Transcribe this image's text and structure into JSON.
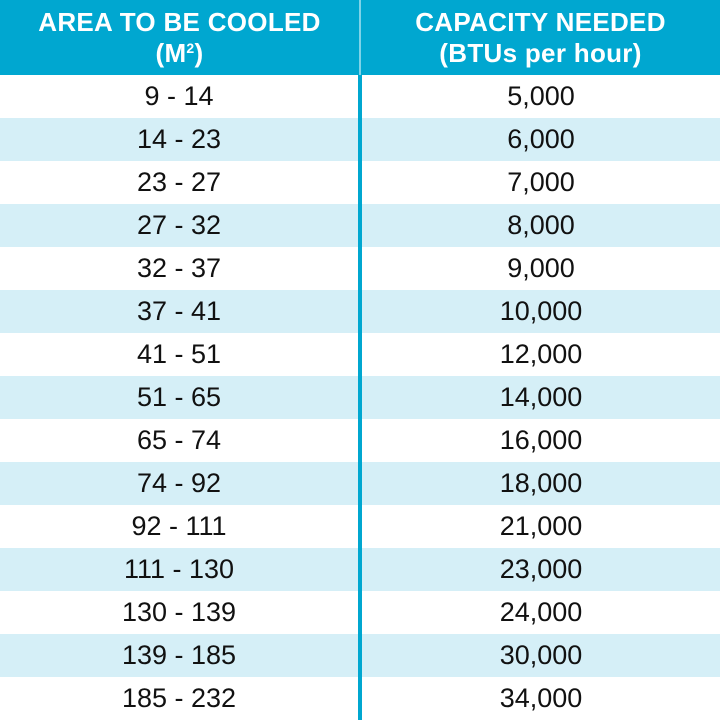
{
  "header": {
    "col1_line1": "AREA TO BE COOLED",
    "col1_line2_prefix": "(M",
    "col1_sup": "2",
    "col1_line2_suffix": ")",
    "col2_line1": "CAPACITY NEEDED",
    "col2_line2": "(BTUs per hour)"
  },
  "colors": {
    "header_bg": "#00a7d0",
    "alt_row": "#d5eff7",
    "header_text": "#ffffff"
  },
  "rows": [
    {
      "area": "9 - 14",
      "capacity": "5,000"
    },
    {
      "area": "14 - 23",
      "capacity": "6,000"
    },
    {
      "area": "23 - 27",
      "capacity": "7,000"
    },
    {
      "area": "27 - 32",
      "capacity": "8,000"
    },
    {
      "area": "32 - 37",
      "capacity": "9,000"
    },
    {
      "area": "37 - 41",
      "capacity": "10,000"
    },
    {
      "area": "41 - 51",
      "capacity": "12,000"
    },
    {
      "area": "51 - 65",
      "capacity": "14,000"
    },
    {
      "area": "65 - 74",
      "capacity": "16,000"
    },
    {
      "area": "74 - 92",
      "capacity": "18,000"
    },
    {
      "area": "92 - 111",
      "capacity": "21,000"
    },
    {
      "area": "111 - 130",
      "capacity": "23,000"
    },
    {
      "area": "130 - 139",
      "capacity": "24,000"
    },
    {
      "area": "139 - 185",
      "capacity": "30,000"
    },
    {
      "area": "185 - 232",
      "capacity": "34,000"
    }
  ]
}
